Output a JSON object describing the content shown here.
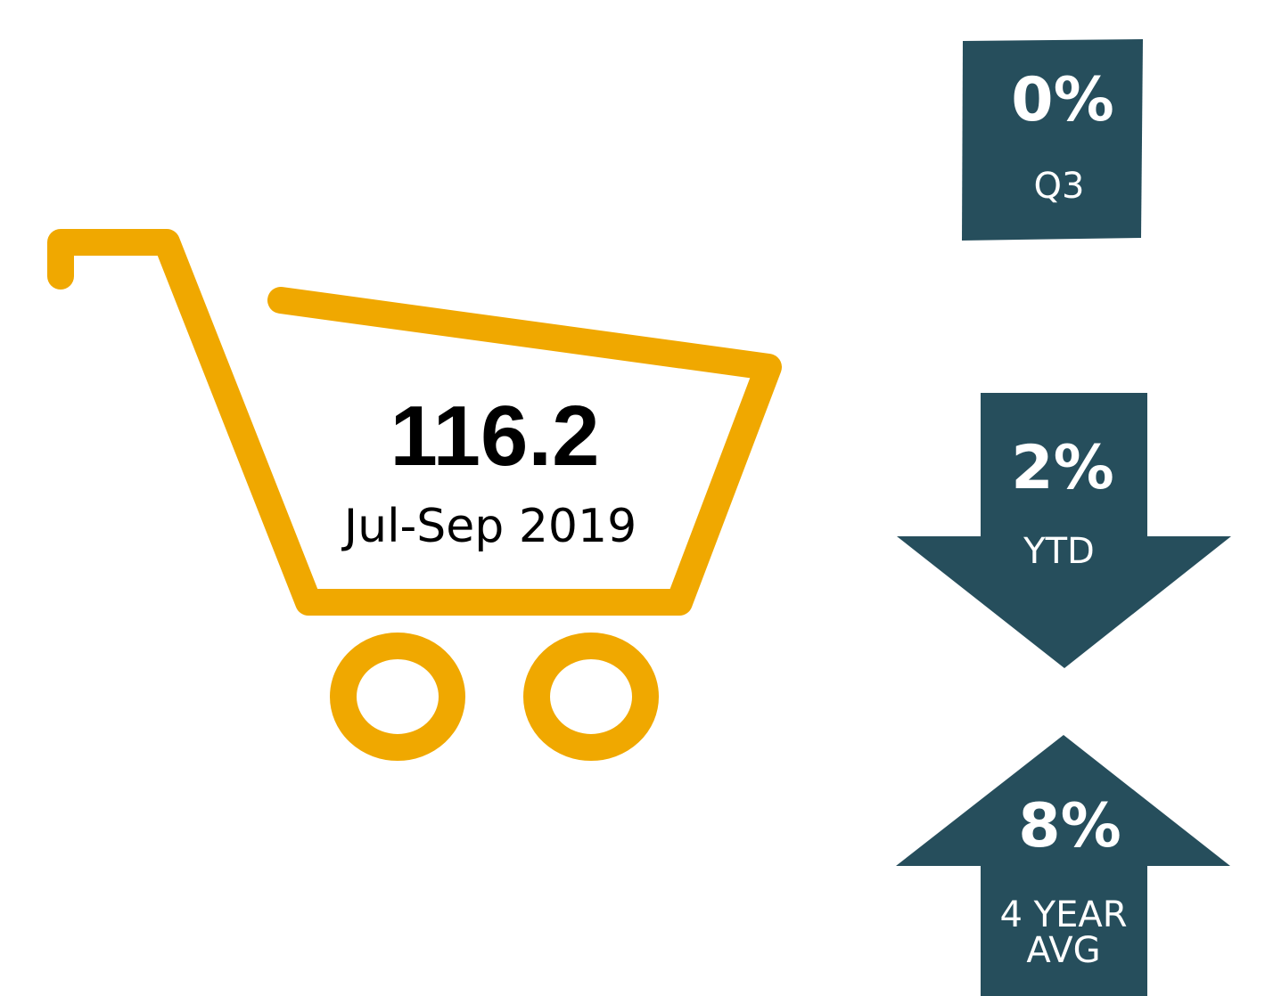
{
  "main": {
    "value": "116.2",
    "period": "Jul-Sep 2019"
  },
  "indicators": [
    {
      "value": "0%",
      "label": "Q3"
    },
    {
      "value": "2%",
      "label": "YTD"
    },
    {
      "value": "8%",
      "label": "4 YEAR AVG"
    }
  ]
}
